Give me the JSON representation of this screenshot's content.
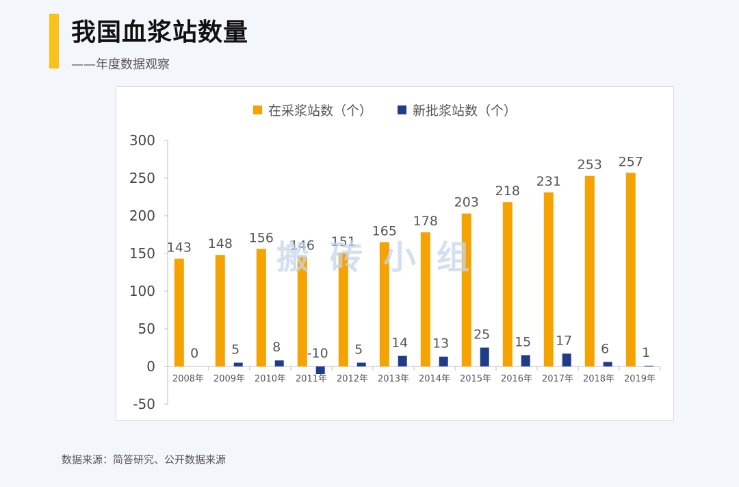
{
  "header": {
    "title": "我国血浆站数量",
    "subtitle": "——年度数据观察"
  },
  "watermark": "搬砖小组",
  "source": "数据来源：简答研究、公开数据来源",
  "colors": {
    "accent": "#f8c21a",
    "series1": "#f5a300",
    "series2": "#1f3c88"
  },
  "chart_data": {
    "type": "bar",
    "categories": [
      "2008年",
      "2009年",
      "2010年",
      "2011年",
      "2012年",
      "2013年",
      "2014年",
      "2015年",
      "2016年",
      "2017年",
      "2018年",
      "2019年"
    ],
    "series": [
      {
        "name": "在采浆站数（个）",
        "color": "#f5a300",
        "values": [
          143,
          148,
          156,
          146,
          151,
          165,
          178,
          203,
          218,
          231,
          253,
          257
        ]
      },
      {
        "name": "新批浆站数（个）",
        "color": "#1f3c88",
        "values": [
          0,
          5,
          8,
          -10,
          5,
          14,
          13,
          25,
          15,
          17,
          6,
          1
        ]
      }
    ],
    "ylim": [
      -50,
      300
    ],
    "yticks": [
      -50,
      0,
      50,
      100,
      150,
      200,
      250,
      300
    ],
    "legend": "top-center",
    "grid": false
  }
}
